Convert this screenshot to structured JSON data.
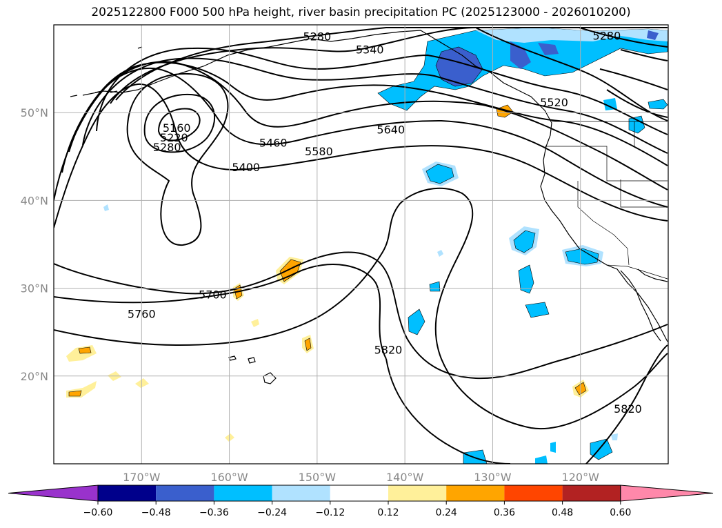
{
  "title": "2025122800 F000 500 hPa height, river basin precipitation PC (2025123000 - 2026010200)",
  "map": {
    "lat_labels": [
      "50°N",
      "40°N",
      "30°N",
      "20°N"
    ],
    "lon_labels": [
      "170°W",
      "160°W",
      "150°W",
      "140°W",
      "130°W",
      "120°W"
    ],
    "lat_range": [
      10,
      60
    ],
    "lon_range": [
      -180,
      -110
    ],
    "contour_labels": [
      {
        "text": "5280",
        "lon": -150.0,
        "lat": 58.7
      },
      {
        "text": "5340",
        "lon": -144.0,
        "lat": 57.2
      },
      {
        "text": "5280",
        "lon": -117.0,
        "lat": 58.8
      },
      {
        "text": "5520",
        "lon": -123.0,
        "lat": 51.2
      },
      {
        "text": "5640",
        "lon": -141.6,
        "lat": 48.1
      },
      {
        "text": "5580",
        "lon": -149.8,
        "lat": 45.6
      },
      {
        "text": "5460",
        "lon": -155.0,
        "lat": 46.6
      },
      {
        "text": "5400",
        "lon": -158.1,
        "lat": 43.8
      },
      {
        "text": "5160",
        "lon": -166.0,
        "lat": 48.3
      },
      {
        "text": "5220",
        "lon": -166.3,
        "lat": 47.2
      },
      {
        "text": "5280",
        "lon": -167.1,
        "lat": 46.1
      },
      {
        "text": "5700",
        "lon": -161.9,
        "lat": 29.3
      },
      {
        "text": "5760",
        "lon": -170.0,
        "lat": 27.1
      },
      {
        "text": "5820",
        "lon": -141.9,
        "lat": 23.0
      },
      {
        "text": "5820",
        "lon": -114.6,
        "lat": 16.3
      }
    ]
  },
  "colorbar": {
    "ticks": [
      "−0.60",
      "−0.48",
      "−0.36",
      "−0.24",
      "−0.12",
      "0.12",
      "0.24",
      "0.36",
      "0.48",
      "0.60"
    ],
    "levels": [
      -0.6,
      -0.48,
      -0.36,
      -0.24,
      -0.12,
      0.12,
      0.24,
      0.36,
      0.48,
      0.6
    ],
    "colors": [
      "#9932cc",
      "#00008b",
      "#3a5fcd",
      "#00bfff",
      "#b0e2ff",
      "#ffffff",
      "#fff09a",
      "#ffa500",
      "#ff4500",
      "#b22222",
      "#ff88aa"
    ]
  }
}
